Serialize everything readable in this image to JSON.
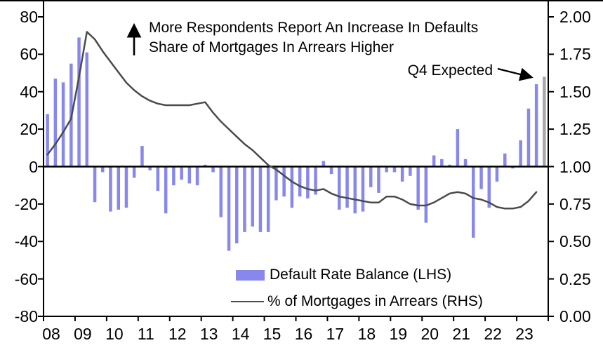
{
  "chart_data": {
    "type": "bar+line",
    "title": "",
    "ylim": [
      -80,
      80
    ],
    "rlim": [
      0,
      2
    ],
    "axes": {
      "left": {
        "labels": [
          "80",
          "60",
          "40",
          "20",
          "0",
          "-20",
          "-40",
          "-60",
          "-80"
        ],
        "values": [
          80,
          60,
          40,
          20,
          0,
          -20,
          -40,
          -60,
          -80
        ]
      },
      "right": {
        "labels": [
          "2.00",
          "1.75",
          "1.50",
          "1.25",
          "1.00",
          "0.75",
          "0.50",
          "0.25",
          "0.00"
        ],
        "values": [
          2,
          1.75,
          1.5,
          1.25,
          1,
          0.75,
          0.5,
          0.25,
          0
        ]
      },
      "x": {
        "labels": [
          "08",
          "09",
          "10",
          "11",
          "12",
          "13",
          "14",
          "15",
          "16",
          "17",
          "18",
          "19",
          "20",
          "21",
          "22",
          "23"
        ]
      }
    },
    "bars": {
      "name": "Default Rate Balance (LHS)",
      "color": "#8888ec",
      "expected_color": "#a8a8a8",
      "last_is_expected": true,
      "values": [
        28,
        47,
        45,
        55,
        69,
        61,
        -19,
        -3,
        -24,
        -23,
        -22,
        -6,
        11,
        -2,
        -13,
        -25,
        -10,
        -7,
        -9,
        -10,
        1,
        -3,
        -27,
        -45,
        -41,
        -35,
        -32,
        -35,
        -35,
        -18,
        -16,
        -22,
        -16,
        -17,
        -15,
        3,
        -4,
        -23,
        -22,
        -25,
        -24,
        -11,
        -14,
        -3,
        -3,
        -8,
        -5,
        -23,
        -30,
        6,
        4,
        1,
        20,
        4,
        -38,
        -12,
        -22,
        -8,
        7,
        -1,
        14,
        31,
        44,
        48
      ]
    },
    "line": {
      "name": "% of Mortgages in Arrears (RHS)",
      "color": "#4b4b4b",
      "values": [
        1.08,
        1.15,
        1.23,
        1.32,
        1.6,
        1.9,
        1.85,
        1.77,
        1.7,
        1.63,
        1.56,
        1.51,
        1.47,
        1.44,
        1.42,
        1.41,
        1.41,
        1.41,
        1.41,
        1.42,
        1.43,
        1.36,
        1.3,
        1.25,
        1.2,
        1.15,
        1.11,
        1.06,
        1.01,
        0.98,
        0.94,
        0.9,
        0.87,
        0.85,
        0.84,
        0.85,
        0.82,
        0.8,
        0.79,
        0.78,
        0.77,
        0.76,
        0.76,
        0.8,
        0.8,
        0.78,
        0.75,
        0.74,
        0.74,
        0.76,
        0.79,
        0.82,
        0.83,
        0.82,
        0.79,
        0.78,
        0.76,
        0.73,
        0.72,
        0.72,
        0.73,
        0.77,
        0.83
      ]
    }
  },
  "annotations": {
    "note_line1": "More Respondents Report An Increase In Defaults",
    "note_line2": "Share of Mortgages In Arrears Higher",
    "q4_label": "Q4 Expected"
  },
  "legend": {
    "items": [
      {
        "label": "Default Rate Balance (LHS)",
        "type": "bar"
      },
      {
        "label": "% of Mortgages in Arrears (RHS)",
        "type": "line"
      }
    ]
  }
}
